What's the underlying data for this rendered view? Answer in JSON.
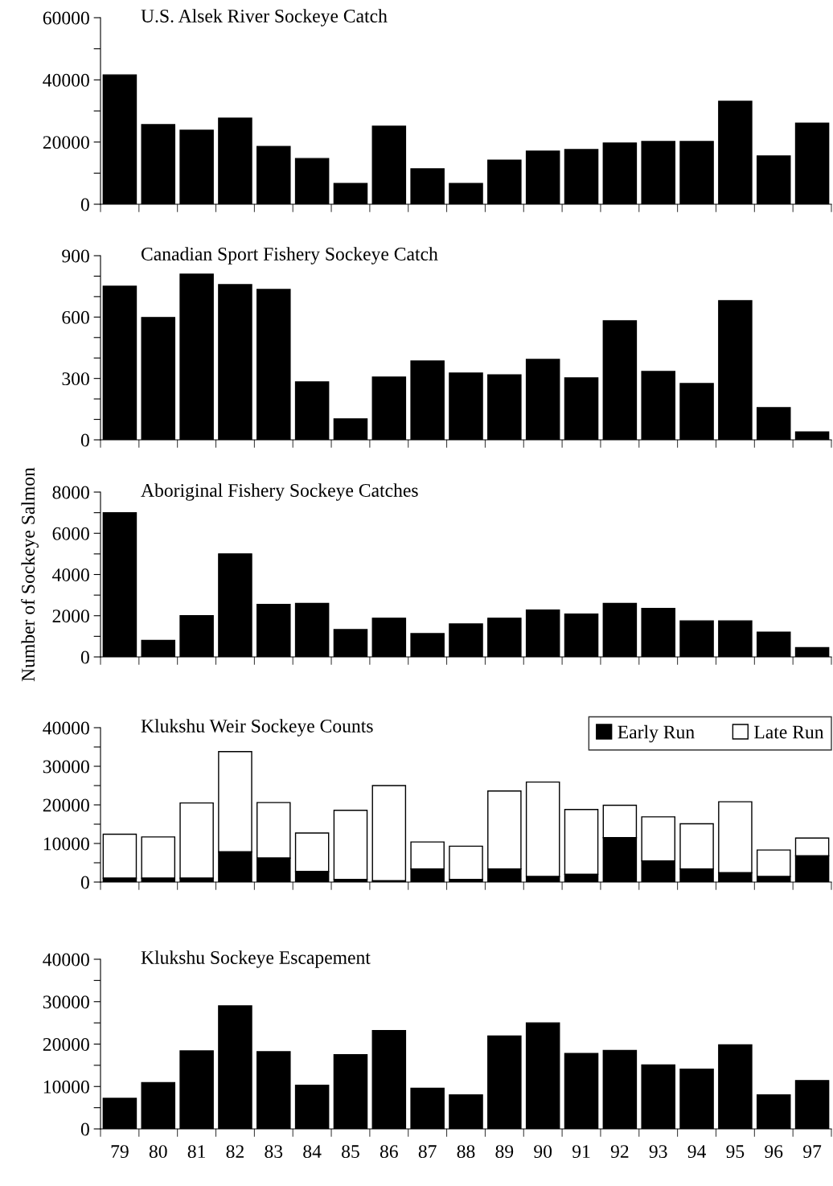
{
  "chart_data": [
    {
      "type": "bar",
      "title": "U.S. Alsek River Sockeye Catch",
      "categories": [
        "79",
        "80",
        "81",
        "82",
        "83",
        "84",
        "85",
        "86",
        "87",
        "88",
        "89",
        "90",
        "91",
        "92",
        "93",
        "94",
        "95",
        "96",
        "97"
      ],
      "values": [
        41600,
        25600,
        23800,
        27700,
        18600,
        14700,
        6700,
        25100,
        11400,
        6700,
        14200,
        17100,
        17600,
        19700,
        20200,
        20200,
        33100,
        15500,
        26100
      ],
      "color": "#000000",
      "ylim": [
        0,
        60000
      ],
      "yticks": [
        0,
        {
          "value": 10000,
          "label": null
        },
        20000,
        {
          "value": 30000,
          "label": null
        },
        40000,
        {
          "value": 50000,
          "label": null
        },
        60000
      ],
      "tick_labels": "y",
      "grid": false,
      "legend": false
    },
    {
      "type": "bar",
      "title": "Canadian Sport Fishery Sockeye Catch",
      "categories": [
        "79",
        "80",
        "81",
        "82",
        "83",
        "84",
        "85",
        "86",
        "87",
        "88",
        "89",
        "90",
        "91",
        "92",
        "93",
        "94",
        "95",
        "96",
        "97"
      ],
      "values": [
        751,
        598,
        810,
        759,
        735,
        283,
        102,
        307,
        385,
        326,
        318,
        393,
        303,
        582,
        334,
        275,
        680,
        157,
        39
      ],
      "color": "#000000",
      "ylim": [
        0,
        900
      ],
      "yticks": [
        0,
        {
          "value": 100,
          "label": null
        },
        {
          "value": 200,
          "label": null
        },
        300,
        {
          "value": 400,
          "label": null
        },
        {
          "value": 500,
          "label": null
        },
        600,
        {
          "value": 700,
          "label": null
        },
        {
          "value": 800,
          "label": null
        },
        900
      ],
      "tick_labels": "y",
      "grid": false,
      "legend": false
    },
    {
      "type": "bar",
      "title": "Aboriginal Fishery Sockeye Catches",
      "ylabel": "Number of Sockeye Salmon",
      "categories": [
        "79",
        "80",
        "81",
        "82",
        "83",
        "84",
        "85",
        "86",
        "87",
        "88",
        "89",
        "90",
        "91",
        "92",
        "93",
        "94",
        "95",
        "96",
        "97"
      ],
      "values": [
        7000,
        800,
        2000,
        5000,
        2550,
        2600,
        1330,
        1880,
        1130,
        1600,
        1880,
        2280,
        2080,
        2600,
        2350,
        1750,
        1750,
        1200,
        450
      ],
      "color": "#000000",
      "ylim": [
        0,
        8000
      ],
      "yticks": [
        0,
        {
          "value": 1000,
          "label": null
        },
        2000,
        {
          "value": 3000,
          "label": null
        },
        4000,
        {
          "value": 5000,
          "label": null
        },
        6000,
        {
          "value": 7000,
          "label": null
        },
        8000
      ],
      "tick_labels": "y",
      "grid": false,
      "legend": false
    },
    {
      "type": "bar",
      "title": "Klukshu Weir Sockeye Counts",
      "stacked": true,
      "categories": [
        "79",
        "80",
        "81",
        "82",
        "83",
        "84",
        "85",
        "86",
        "87",
        "88",
        "89",
        "90",
        "91",
        "92",
        "93",
        "94",
        "95",
        "96",
        "97"
      ],
      "series": [
        {
          "name": "Early Run",
          "color": "#000000",
          "values": [
            1000,
            1000,
            1000,
            7800,
            6200,
            2700,
            700,
            300,
            3400,
            700,
            3400,
            1400,
            2000,
            11500,
            5500,
            3400,
            2400,
            1400,
            6800
          ]
        },
        {
          "name": "Late Run",
          "color": "#ffffff",
          "values": [
            11400,
            10700,
            19500,
            26000,
            14400,
            10000,
            17900,
            24700,
            7000,
            8600,
            20200,
            24500,
            16800,
            8400,
            11400,
            11700,
            18400,
            6900,
            4600
          ]
        }
      ],
      "ylim": [
        0,
        40000
      ],
      "yticks": [
        0,
        {
          "value": 5000,
          "label": null
        },
        10000,
        {
          "value": 15000,
          "label": null
        },
        20000,
        {
          "value": 25000,
          "label": null
        },
        30000,
        {
          "value": 35000,
          "label": null
        },
        40000
      ],
      "tick_labels": "y",
      "grid": false,
      "legend": "top right"
    },
    {
      "type": "bar",
      "title": "Klukshu Sockeye Escapement",
      "categories": [
        "79",
        "80",
        "81",
        "82",
        "83",
        "84",
        "85",
        "86",
        "87",
        "88",
        "89",
        "90",
        "91",
        "92",
        "93",
        "94",
        "95",
        "96",
        "97"
      ],
      "values": [
        7200,
        10900,
        18400,
        29000,
        18200,
        10300,
        17500,
        23200,
        9600,
        8000,
        21900,
        25000,
        17800,
        18500,
        15100,
        14100,
        19800,
        8000,
        11400
      ],
      "color": "#000000",
      "ylim": [
        0,
        40000
      ],
      "yticks": [
        0,
        {
          "value": 5000,
          "label": null
        },
        10000,
        {
          "value": 15000,
          "label": null
        },
        20000,
        {
          "value": 25000,
          "label": null
        },
        30000,
        {
          "value": 35000,
          "label": null
        },
        40000
      ],
      "grid": false,
      "legend": false
    }
  ]
}
